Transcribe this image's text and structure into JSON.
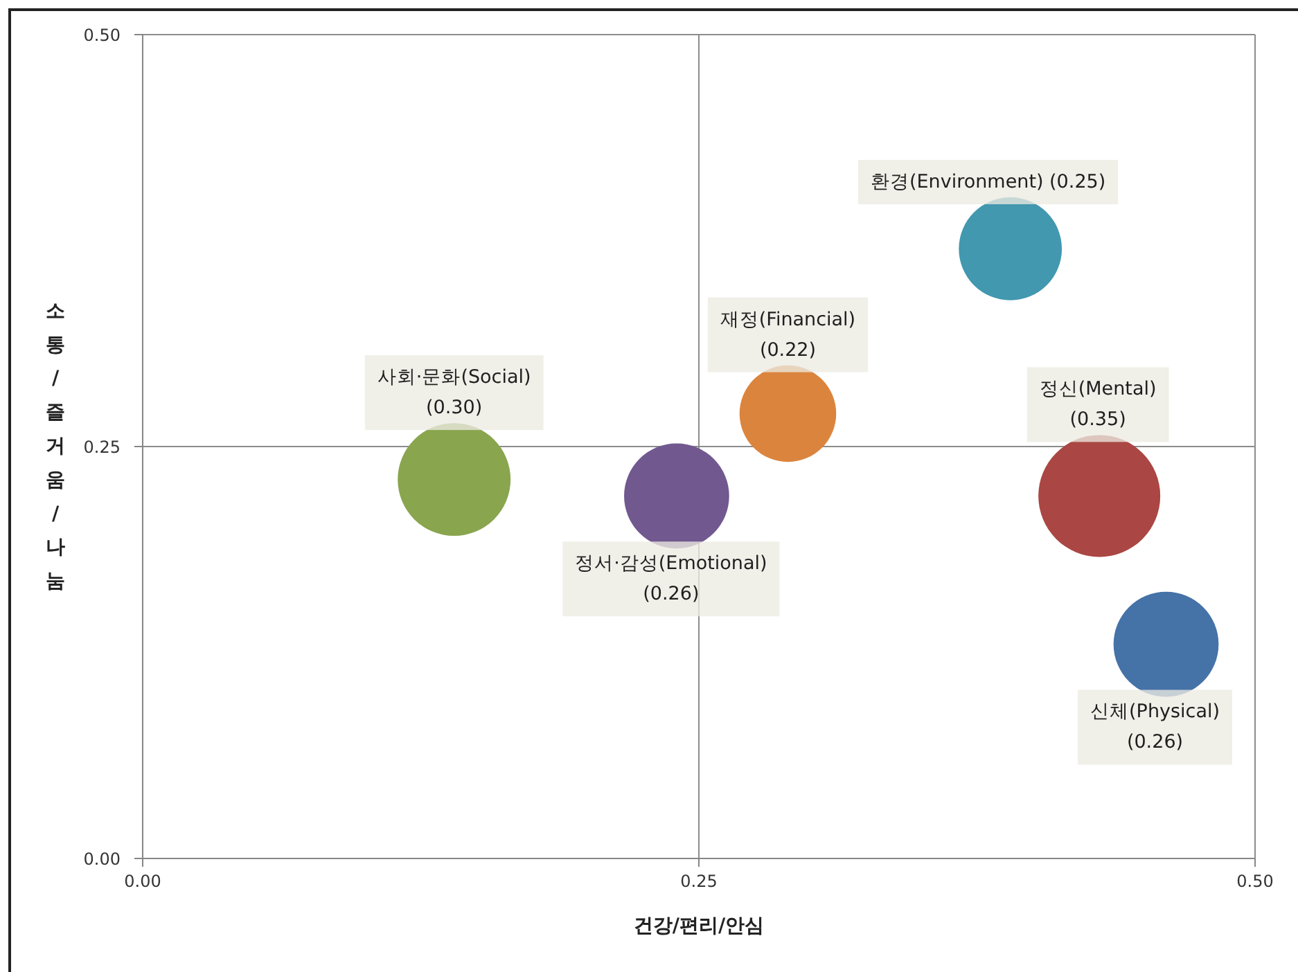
{
  "chart_data": {
    "type": "bubble",
    "xlabel": "건강/편리/안심",
    "ylabel": "소통/즐거움/나눔",
    "xlim": [
      0,
      0.5
    ],
    "ylim": [
      0,
      0.5
    ],
    "xticks": [
      {
        "value": 0,
        "label": "0.00"
      },
      0.25,
      {
        "value": 0.5,
        "label": "0.50"
      }
    ],
    "yticks": [
      {
        "value": 0,
        "label": "0.00"
      },
      0.25,
      {
        "value": 0.5,
        "label": "0.50"
      }
    ],
    "grid": true,
    "series": [
      {
        "name": "신체(Physical)",
        "color": "#4572a7",
        "x": [
          0.46
        ],
        "values": [
          0.13
        ],
        "sizes": [
          0.26
        ],
        "value_labels": [
          "(0.26)"
        ]
      },
      {
        "name": "정신(Mental)",
        "color": "#aa4643",
        "x": [
          0.43
        ],
        "values": [
          0.22
        ],
        "sizes": [
          0.35
        ],
        "value_labels": [
          "(0.35)"
        ]
      },
      {
        "name": "사회·문화(Social)",
        "color": "#89a54e",
        "x": [
          0.14
        ],
        "values": [
          0.23
        ],
        "sizes": [
          0.3
        ],
        "value_labels": [
          "(0.30)"
        ]
      },
      {
        "name": "정서·감성(Emotional)",
        "color": "#71588f",
        "x": [
          0.24
        ],
        "values": [
          0.22
        ],
        "sizes": [
          0.26
        ],
        "value_labels": [
          "(0.26)"
        ]
      },
      {
        "name": "환경(Environment)",
        "color": "#4198af",
        "x": [
          0.39
        ],
        "values": [
          0.37
        ],
        "sizes": [
          0.25
        ],
        "value_labels": [
          "(0.25)"
        ]
      },
      {
        "name": "재정(Financial)",
        "color": "#db843d",
        "x": [
          0.29
        ],
        "values": [
          0.27
        ],
        "sizes": [
          0.22
        ],
        "value_labels": [
          "(0.22)"
        ]
      }
    ]
  }
}
